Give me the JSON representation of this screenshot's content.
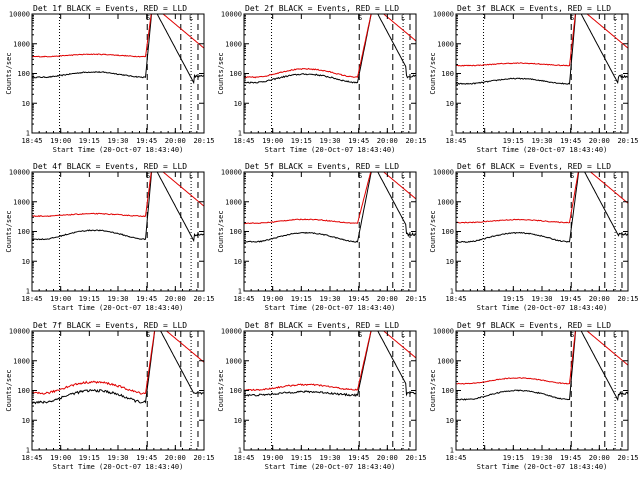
{
  "chart_data": {
    "type": "line",
    "figure": "RHESSI detector count rates, 3x3 panel grid",
    "colors": {
      "events": "#000000",
      "lld": "#e00000",
      "axes": "#000000",
      "background": "#ffffff"
    },
    "shared": {
      "xlabel": "Start Time (20-Oct-07 18:43:40)",
      "ylabel": "Counts/sec",
      "x_ticks": [
        "18:45",
        "19:00",
        "19:15",
        "19:30",
        "19:45",
        "20:00",
        "20:15"
      ],
      "y_ticks": [
        "1",
        "10",
        "100",
        "1000",
        "10000"
      ],
      "ylim": [
        1,
        10000
      ],
      "yscale": "log",
      "xlim_minutes": [
        0,
        100
      ],
      "dotted_lines_min": [
        16,
        92.5
      ],
      "dashed_lines_min": [
        67,
        86.5,
        96.5
      ],
      "markers": {
        "S": 67.5,
        "L": 92.5
      }
    },
    "panels": [
      {
        "title": "Det 1f BLACK = Events, RED = LLD",
        "ticks_shown": 7,
        "black": {
          "base": 75,
          "hump": 1.5
        },
        "red": {
          "base": 370,
          "hump": 1.2
        },
        "noise": 0.04,
        "peak_at": 70
      },
      {
        "title": "Det 2f BLACK = Events, RED = LLD",
        "ticks_shown": 7,
        "black": {
          "base": 50,
          "hump": 1.9
        },
        "red": {
          "base": 75,
          "hump": 1.9
        },
        "noise": 0.05,
        "peak_at": 75
      },
      {
        "title": "Det 3f BLACK = Events, RED = LLD",
        "ticks_shown": 6,
        "black": {
          "base": 45,
          "hump": 1.5
        },
        "red": {
          "base": 185,
          "hump": 1.2
        },
        "noise": 0.04,
        "peak_at": 70
      },
      {
        "title": "Det 4f BLACK = Events, RED = LLD",
        "ticks_shown": 7,
        "black": {
          "base": 55,
          "hump": 2.0
        },
        "red": {
          "base": 330,
          "hump": 1.2
        },
        "noise": 0.04,
        "peak_at": 70
      },
      {
        "title": "Det 5f BLACK = Events, RED = LLD",
        "ticks_shown": 7,
        "black": {
          "base": 45,
          "hump": 2.0
        },
        "red": {
          "base": 190,
          "hump": 1.35
        },
        "noise": 0.04,
        "peak_at": 75
      },
      {
        "title": "Det 6f BLACK = Events, RED = LLD",
        "ticks_shown": 6,
        "black": {
          "base": 45,
          "hump": 2.0
        },
        "red": {
          "base": 200,
          "hump": 1.25
        },
        "noise": 0.04,
        "peak_at": 72
      },
      {
        "title": "Det 7f BLACK = Events, RED = LLD",
        "ticks_shown": 7,
        "black": {
          "base": 40,
          "hump": 2.5
        },
        "red": {
          "base": 80,
          "hump": 2.4
        },
        "noise": 0.1,
        "peak_at": 72
      },
      {
        "title": "Det 8f BLACK = Events, RED = LLD",
        "ticks_shown": 7,
        "black": {
          "base": 70,
          "hump": 1.3
        },
        "red": {
          "base": 105,
          "hump": 1.5
        },
        "noise": 0.07,
        "peak_at": 75
      },
      {
        "title": "Det 9f BLACK = Events, RED = LLD",
        "ticks_shown": 6,
        "black": {
          "base": 50,
          "hump": 2.0
        },
        "red": {
          "base": 170,
          "hump": 1.55
        },
        "noise": 0.04,
        "peak_at": 70
      }
    ]
  }
}
